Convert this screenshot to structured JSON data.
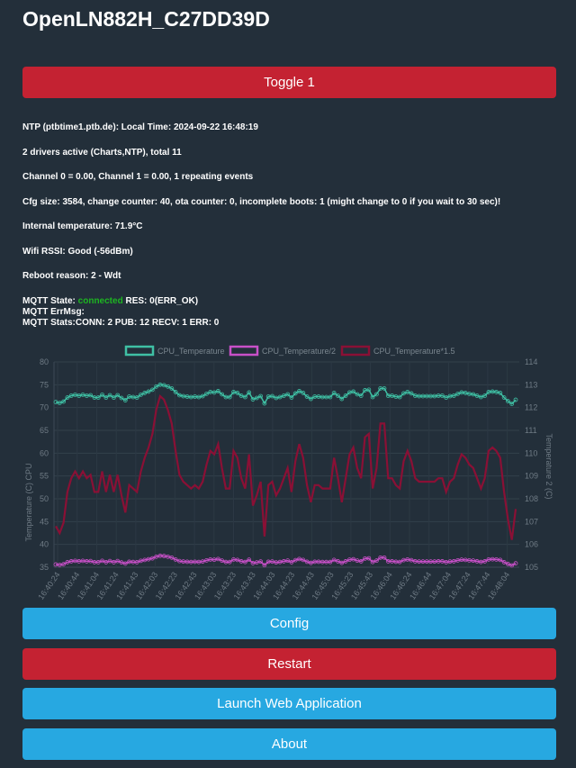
{
  "header": {
    "title": "OpenLN882H_C27DD39D"
  },
  "buttons": {
    "toggle": "Toggle 1",
    "config": "Config",
    "restart": "Restart",
    "launch": "Launch Web Application",
    "about": "About"
  },
  "status": {
    "ntp": "NTP (ptbtime1.ptb.de): Local Time: 2024-09-22 16:48:19",
    "drivers": "2 drivers active (Charts,NTP), total 11",
    "channels": "Channel 0 = 0.00, Channel 1 = 0.00, 1 repeating events",
    "cfg": "Cfg size: 3584, change counter: 40, ota counter: 0, incomplete boots: 1 (might change to 0 if you wait to 30 sec)!",
    "temperature": "Internal temperature: 71.9°C",
    "wifi": "Wifi RSSI: Good (-56dBm)",
    "reboot": "Reboot reason: 2 - Wdt",
    "mqtt_state_label": "MQTT State: ",
    "mqtt_state_value": "connected",
    "mqtt_state_res": " RES: 0(ERR_OK)",
    "mqtt_errmsg": "MQTT ErrMsg:",
    "mqtt_stats": "MQTT Stats:CONN: 2 PUB: 12 RECV: 1 ERR: 0"
  },
  "colors": {
    "red": "#c42232",
    "blue": "#27a8e1",
    "connected": "#1db521",
    "series1": "#3fc0a4",
    "series2": "#c850c8",
    "series3": "#8a1035"
  },
  "chart_data": {
    "type": "line",
    "legend_position": "top",
    "series_names": [
      "CPU_Temperature",
      "CPU_Temperature/2",
      "CPU_Temperature*1.5"
    ],
    "ylabel_left": "Temperature (C) CPU",
    "ylabel_right": "Temperature 2 (C)",
    "y_left_range": [
      35,
      80
    ],
    "y_left_ticks": [
      "80",
      "75",
      "70",
      "65",
      "60",
      "55",
      "50",
      "45",
      "40",
      "35"
    ],
    "y_right_range": [
      105,
      114
    ],
    "y_right_ticks": [
      "114",
      "113",
      "112",
      "111",
      "110",
      "109",
      "108",
      "107",
      "106",
      "105"
    ],
    "x_ticks": [
      "16:40:24",
      "16:40:44",
      "16:41:04",
      "16:41:24",
      "16:41:43",
      "16:42:03",
      "16:42:23",
      "16:42:43",
      "16:43:03",
      "16:43:23",
      "16:43:43",
      "16:44:03",
      "16:44:23",
      "16:44:43",
      "16:45:03",
      "16:45:23",
      "16:45:43",
      "16:46:04",
      "16:46:24",
      "16:46:44",
      "16:47:04",
      "16:47:24",
      "16:47:44",
      "16:48:04"
    ],
    "cpu_temperature": [
      71.2,
      71.0,
      71.3,
      72.2,
      72.6,
      72.8,
      72.6,
      72.8,
      72.6,
      72.7,
      72.2,
      72.2,
      72.8,
      72.2,
      72.7,
      72.2,
      72.7,
      72.1,
      71.6,
      72.4,
      72.3,
      72.2,
      72.8,
      73.2,
      73.5,
      73.9,
      74.6,
      75.0,
      74.9,
      74.6,
      74.2,
      73.4,
      72.7,
      72.5,
      72.4,
      72.3,
      72.4,
      72.3,
      72.5,
      73.0,
      73.4,
      73.3,
      73.6,
      72.9,
      72.3,
      72.3,
      73.4,
      73.2,
      72.6,
      72.3,
      73.3,
      71.8,
      72.1,
      72.5,
      70.9,
      72.4,
      72.5,
      72.1,
      72.3,
      72.6,
      72.9,
      72.2,
      73.1,
      73.6,
      73.2,
      72.4,
      71.9,
      72.4,
      72.4,
      72.3,
      72.3,
      72.3,
      73.2,
      72.6,
      71.9,
      72.6,
      73.3,
      73.5,
      72.9,
      72.6,
      73.8,
      73.9,
      72.3,
      72.9,
      74.2,
      74.2,
      72.6,
      72.6,
      72.4,
      72.3,
      73.1,
      73.4,
      73.1,
      72.6,
      72.5,
      72.5,
      72.5,
      72.5,
      72.5,
      72.6,
      72.6,
      72.2,
      72.5,
      72.6,
      73.0,
      73.3,
      73.2,
      73.0,
      72.9,
      72.6,
      72.3,
      72.6,
      73.4,
      73.5,
      73.4,
      73.2,
      72.2,
      71.4,
      70.8,
      71.7
    ]
  }
}
